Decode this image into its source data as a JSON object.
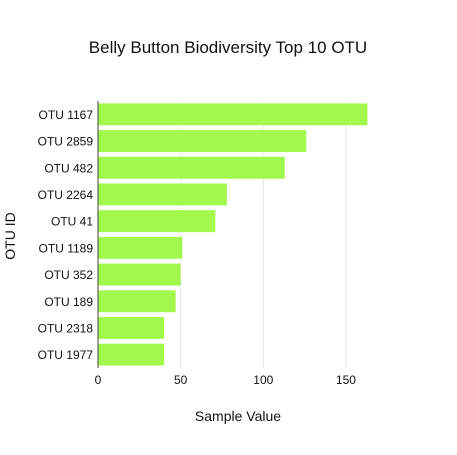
{
  "chart_data": {
    "type": "bar",
    "orientation": "horizontal",
    "title": "Belly Button Biodiversity Top 10 OTU",
    "xlabel": "Sample Value",
    "ylabel": "OTU ID",
    "categories": [
      "OTU 1167",
      "OTU 2859",
      "OTU 482",
      "OTU 2264",
      "OTU 41",
      "OTU 1189",
      "OTU 352",
      "OTU 189",
      "OTU 2318",
      "OTU 1977"
    ],
    "values": [
      163,
      126,
      113,
      78,
      71,
      51,
      50,
      47,
      40,
      40
    ],
    "xlim": [
      0,
      170
    ],
    "xticks": [
      0,
      50,
      100,
      150
    ],
    "bar_color": "#a3f84d",
    "grid": true,
    "legend": false
  }
}
